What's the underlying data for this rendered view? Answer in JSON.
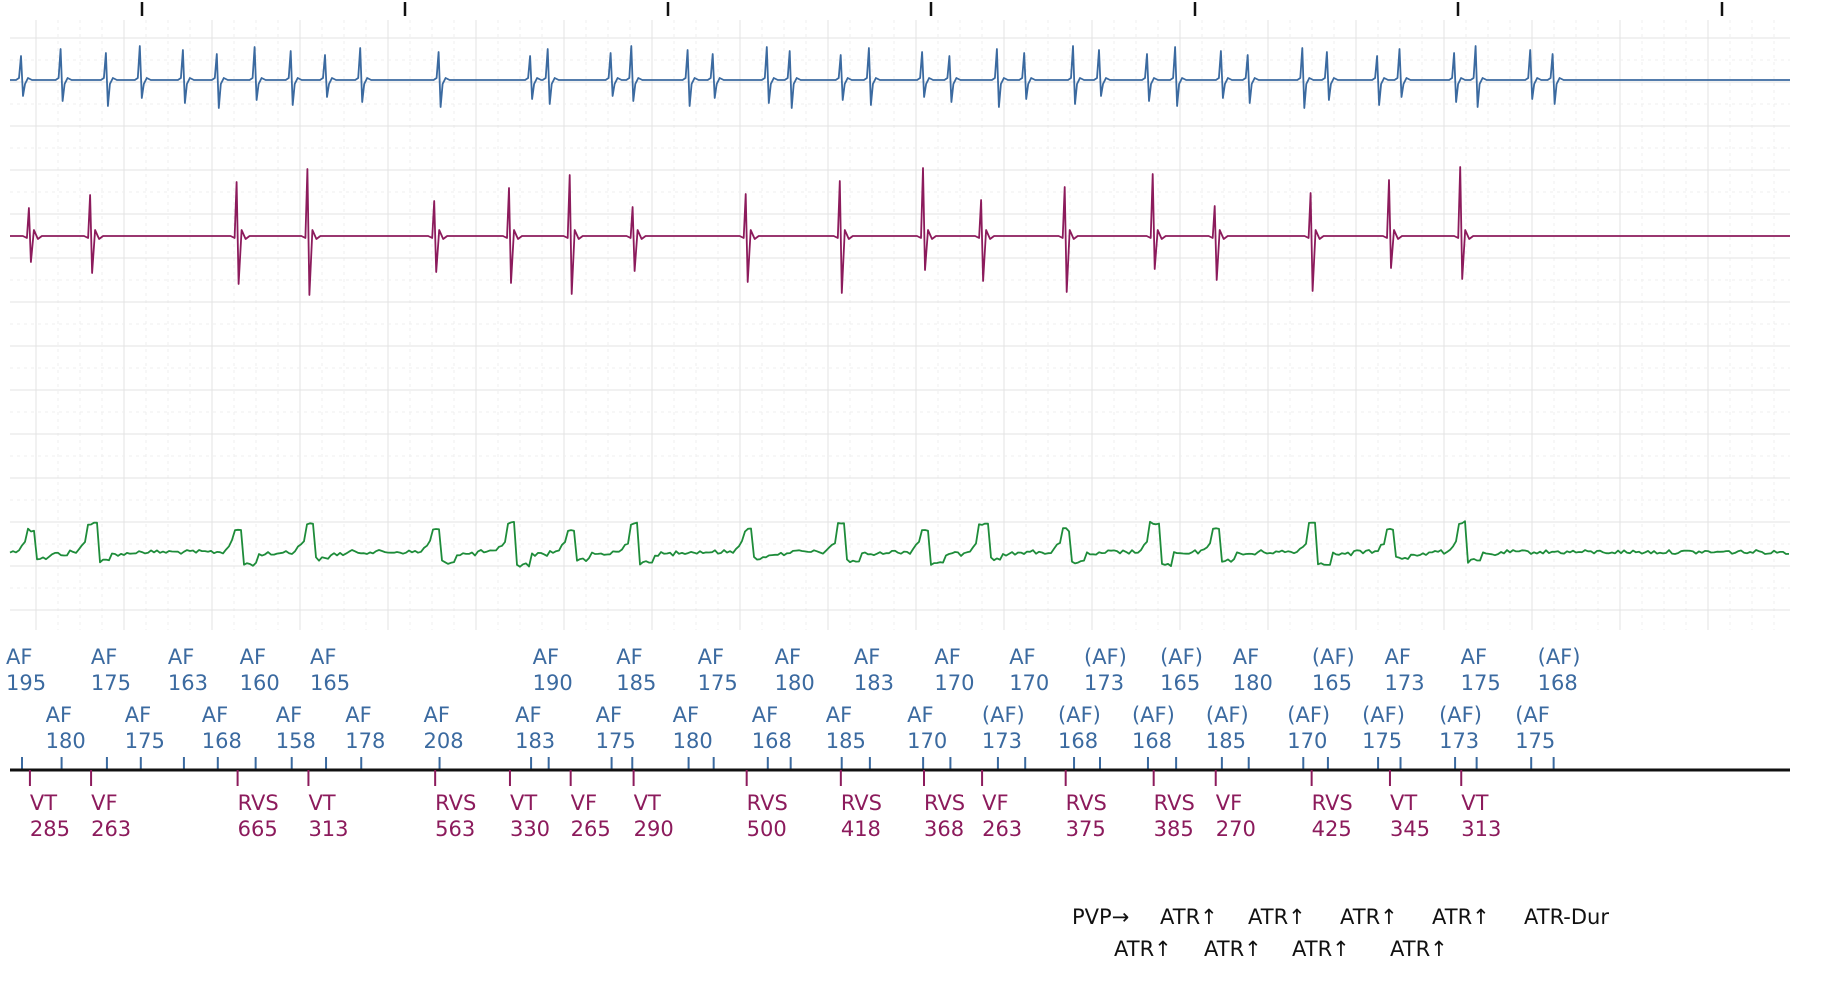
{
  "colors": {
    "atrial": "#3b6aa0",
    "rv": "#8c1b5c",
    "far_field": "#1e8c3a",
    "marker_axis": "#111111",
    "events": "#111111",
    "grid_major": "#e3e3e3",
    "grid_minor": "#efefef"
  },
  "chart_data": {
    "type": "line",
    "title": "",
    "xlabel": "",
    "ylabel": "",
    "grid": true,
    "series": [
      {
        "key": "atrial",
        "color": "#3b6aa0"
      },
      {
        "key": "rv",
        "color": "#8c1b5c"
      },
      {
        "key": "far_field",
        "color": "#1e8c3a"
      }
    ],
    "atrial_markers_row1": [
      {
        "label": "AF",
        "value": "195",
        "t": 0.0
      },
      {
        "label": "AF",
        "value": "175",
        "t": 0.193
      },
      {
        "label": "AF",
        "value": "163",
        "t": 0.368
      },
      {
        "label": "AF",
        "value": "160",
        "t": 0.531
      },
      {
        "label": "AF",
        "value": "165",
        "t": 0.691
      },
      {
        "label": "AF",
        "value": "190",
        "t": 1.197
      },
      {
        "label": "AF",
        "value": "185",
        "t": 1.387
      },
      {
        "label": "AF",
        "value": "175",
        "t": 1.572
      },
      {
        "label": "AF",
        "value": "180",
        "t": 1.747
      },
      {
        "label": "AF",
        "value": "183",
        "t": 1.927
      },
      {
        "label": "AF",
        "value": "170",
        "t": 2.11
      },
      {
        "label": "AF",
        "value": "170",
        "t": 2.28
      },
      {
        "label": "(AF)",
        "value": "173",
        "t": 2.45
      },
      {
        "label": "(AF)",
        "value": "165",
        "t": 2.623
      },
      {
        "label": "AF",
        "value": "180",
        "t": 2.788
      },
      {
        "label": "(AF)",
        "value": "165",
        "t": 2.968
      },
      {
        "label": "AF",
        "value": "173",
        "t": 3.133
      },
      {
        "label": "AF",
        "value": "175",
        "t": 3.306
      },
      {
        "label": "(AF)",
        "value": "168",
        "t": 3.481
      }
    ],
    "atrial_markers_row2": [
      {
        "label": "AF",
        "value": "180",
        "t": 0.09
      },
      {
        "label": "AF",
        "value": "175",
        "t": 0.27
      },
      {
        "label": "AF",
        "value": "168",
        "t": 0.445
      },
      {
        "label": "AF",
        "value": "158",
        "t": 0.613
      },
      {
        "label": "AF",
        "value": "178",
        "t": 0.771
      },
      {
        "label": "AF",
        "value": "208",
        "t": 0.949
      },
      {
        "label": "AF",
        "value": "183",
        "t": 1.157
      },
      {
        "label": "AF",
        "value": "175",
        "t": 1.34
      },
      {
        "label": "AF",
        "value": "180",
        "t": 1.515
      },
      {
        "label": "AF",
        "value": "168",
        "t": 1.695
      },
      {
        "label": "AF",
        "value": "185",
        "t": 1.863
      },
      {
        "label": "AF",
        "value": "170",
        "t": 2.048
      },
      {
        "label": "(AF)",
        "value": "173",
        "t": 2.218
      },
      {
        "label": "(AF)",
        "value": "168",
        "t": 2.391
      },
      {
        "label": "(AF)",
        "value": "168",
        "t": 2.559
      },
      {
        "label": "(AF)",
        "value": "185",
        "t": 2.727
      },
      {
        "label": "(AF)",
        "value": "170",
        "t": 2.912
      },
      {
        "label": "(AF)",
        "value": "175",
        "t": 3.082
      },
      {
        "label": "(AF)",
        "value": "173",
        "t": 3.257
      },
      {
        "label": "(AF",
        "value": "175",
        "t": 3.43
      }
    ],
    "ventricular_markers": [
      {
        "label": "VT",
        "value": "285",
        "t": 0.018
      },
      {
        "label": "VF",
        "value": "263",
        "t": 0.157
      },
      {
        "label": "RVS",
        "value": "665",
        "t": 0.49
      },
      {
        "label": "VT",
        "value": "313",
        "t": 0.651
      },
      {
        "label": "RVS",
        "value": "563",
        "t": 0.939
      },
      {
        "label": "VT",
        "value": "330",
        "t": 1.109
      },
      {
        "label": "VF",
        "value": "265",
        "t": 1.247
      },
      {
        "label": "VT",
        "value": "290",
        "t": 1.39
      },
      {
        "label": "RVS",
        "value": "500",
        "t": 1.647
      },
      {
        "label": "RVS",
        "value": "418",
        "t": 1.861
      },
      {
        "label": "RVS",
        "value": "368",
        "t": 2.05
      },
      {
        "label": "VF",
        "value": "263",
        "t": 2.182
      },
      {
        "label": "RVS",
        "value": "375",
        "t": 2.372
      },
      {
        "label": "RVS",
        "value": "385",
        "t": 2.572
      },
      {
        "label": "VF",
        "value": "270",
        "t": 2.713
      },
      {
        "label": "RVS",
        "value": "425",
        "t": 2.931
      },
      {
        "label": "VT",
        "value": "345",
        "t": 3.109
      },
      {
        "label": "VT",
        "value": "313",
        "t": 3.271
      }
    ],
    "event_markers_row1": [
      "PVP→",
      "ATR↑",
      "ATR↑",
      "ATR↑",
      "ATR↑",
      "ATR-Dur"
    ],
    "event_markers_row2": [
      "ATR↑",
      "ATR↑",
      "ATR↑",
      "ATR↑"
    ]
  }
}
